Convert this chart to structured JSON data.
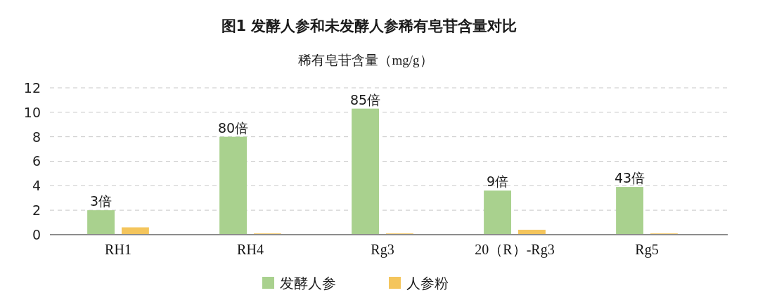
{
  "chart_data": {
    "type": "bar",
    "title": "图1  发酵人参和未发酵人参稀有皂苷含量对比",
    "subtitle": "稀有皂苷含量（mg/g）",
    "categories": [
      "RH1",
      "RH4",
      "Rg3",
      "20（R）-Rg3",
      "Rg5"
    ],
    "series": [
      {
        "name": "发酵人参",
        "color": "#a9d18e",
        "values": [
          2.0,
          8.0,
          10.3,
          3.6,
          3.9
        ]
      },
      {
        "name": "人参粉",
        "color": "#f4c55c",
        "values": [
          0.6,
          0.1,
          0.1,
          0.4,
          0.1
        ]
      }
    ],
    "ylim": [
      0,
      12
    ],
    "yticks": [
      0,
      2,
      4,
      6,
      8,
      10,
      12
    ],
    "grid": "y",
    "legend": "bottom",
    "annotations": [
      "3倍",
      "80倍",
      "85倍",
      "9倍",
      "43倍"
    ]
  }
}
